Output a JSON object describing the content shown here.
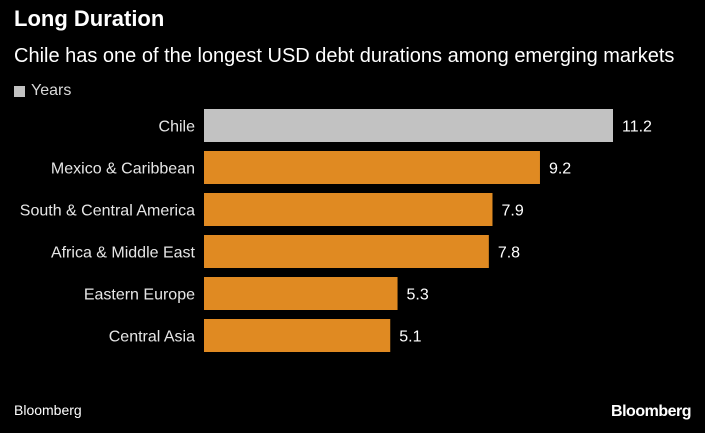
{
  "chart_data": {
    "type": "bar",
    "orientation": "horizontal",
    "title": "Long Duration",
    "subtitle": "Chile has one of the longest USD debt durations among emerging markets",
    "legend": {
      "label": "Years",
      "placement": "top-left"
    },
    "categories": [
      "Chile",
      "Mexico & Caribbean",
      "South & Central America",
      "Africa & Middle East",
      "Eastern Europe",
      "Central Asia"
    ],
    "series": [
      {
        "name": "Years",
        "values": [
          11.2,
          9.2,
          7.9,
          7.8,
          5.3,
          5.1
        ],
        "value_labels": [
          "11.2",
          "9.2",
          "7.9",
          "7.8",
          "5.3",
          "5.1"
        ]
      }
    ],
    "bar_colors": [
      "#c2c2c2",
      "#e08a22",
      "#e08a22",
      "#e08a22",
      "#e08a22",
      "#e08a22"
    ],
    "legend_color": "#c2c2c2",
    "xlim": [
      0,
      11.2
    ],
    "grid": false,
    "source": "Bloomberg"
  },
  "branding": {
    "logo_text": "Bloomberg"
  }
}
